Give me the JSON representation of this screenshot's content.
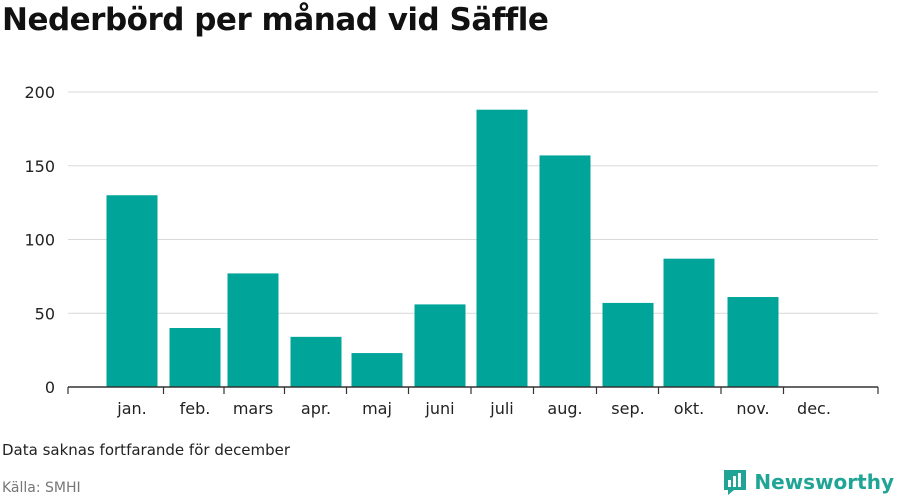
{
  "title": "Nederbörd per månad vid Säffle",
  "note": "Data saknas fortfarande för december",
  "source": "Källa: SMHI",
  "brand": {
    "name": "Newsworthy",
    "icon": "bar-chart-logo-icon",
    "color": "#20a495"
  },
  "chart_data": {
    "type": "bar",
    "categories": [
      "jan.",
      "feb.",
      "mars",
      "apr.",
      "maj",
      "juni",
      "juli",
      "aug.",
      "sep.",
      "okt.",
      "nov.",
      "dec."
    ],
    "values": [
      130,
      40,
      77,
      34,
      23,
      56,
      188,
      157,
      57,
      87,
      61,
      null
    ],
    "yticks": [
      0,
      50,
      100,
      150,
      200
    ],
    "ylim": [
      0,
      200
    ],
    "grid": true,
    "bar_color": "#00a499"
  }
}
